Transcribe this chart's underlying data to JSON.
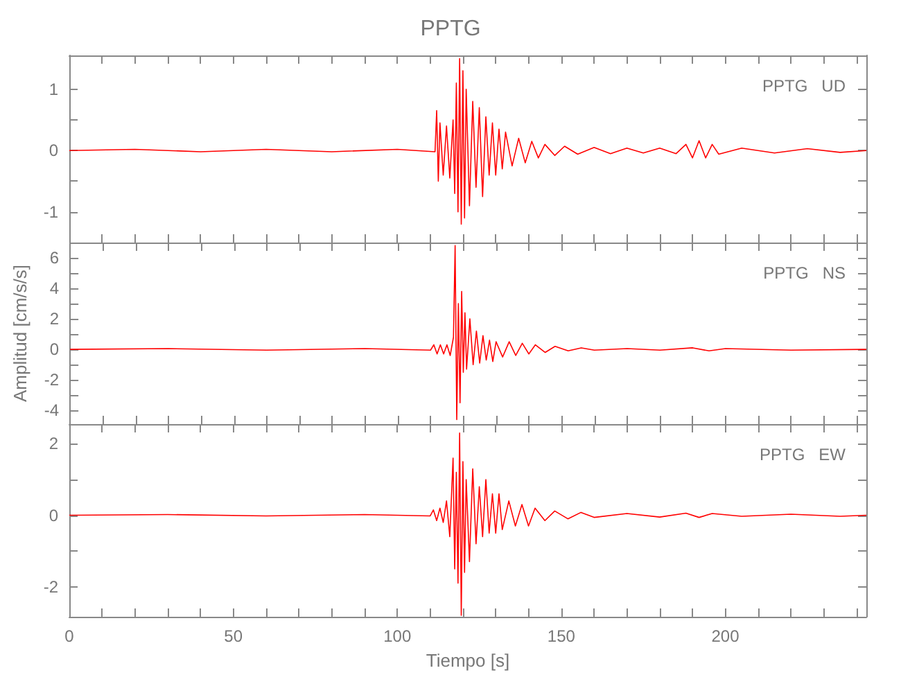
{
  "chart_data": [
    {
      "type": "line",
      "title": "PPTG",
      "annotations": [
        "PPTG   UD"
      ],
      "tick_labels": "y",
      "marker": "none",
      "line_style": "solid",
      "xlim": [
        0,
        243
      ],
      "xticks": [
        0,
        {
          "value": 10,
          "label": null
        },
        {
          "value": 20,
          "label": null
        },
        {
          "value": 30,
          "label": null
        },
        {
          "value": 40,
          "label": null
        },
        50,
        {
          "value": 60,
          "label": null
        },
        {
          "value": 70,
          "label": null
        },
        {
          "value": 80,
          "label": null
        },
        {
          "value": 90,
          "label": null
        },
        100,
        {
          "value": 110,
          "label": null
        },
        {
          "value": 120,
          "label": null
        },
        {
          "value": 130,
          "label": null
        },
        {
          "value": 140,
          "label": null
        },
        150,
        {
          "value": 160,
          "label": null
        },
        {
          "value": 170,
          "label": null
        },
        {
          "value": 180,
          "label": null
        },
        {
          "value": 190,
          "label": null
        },
        200,
        {
          "value": 210,
          "label": null
        },
        {
          "value": 220,
          "label": null
        },
        {
          "value": 230,
          "label": null
        },
        {
          "value": 240,
          "label": null
        }
      ],
      "ylim": [
        -1.5,
        1.55
      ],
      "yticks": [
        -1,
        {
          "value": -0.5,
          "label": null
        },
        0,
        {
          "value": 0.5,
          "label": null
        },
        1
      ],
      "series": [
        {
          "color": "#ff0000",
          "x": [
            0,
            20,
            40,
            60,
            80,
            100,
            111.5,
            112,
            112.5,
            113,
            114,
            115,
            116,
            117,
            117.5,
            118,
            118.5,
            119,
            119.5,
            120,
            120.5,
            121,
            122,
            123,
            124,
            125,
            126,
            127,
            128,
            129,
            130,
            131,
            132,
            133,
            135,
            137,
            139,
            141,
            143,
            145,
            148,
            151,
            155,
            160,
            165,
            170,
            175,
            180,
            185,
            188,
            190,
            192,
            194,
            196,
            198,
            205,
            215,
            225,
            235,
            243
          ],
          "values": [
            0,
            0.02,
            -0.02,
            0.02,
            -0.02,
            0.02,
            -0.02,
            0.65,
            -0.5,
            0.45,
            -0.4,
            0.4,
            -0.45,
            0.5,
            -0.7,
            1.1,
            -1.0,
            1.5,
            -1.2,
            1.3,
            -1.1,
            1.0,
            -0.9,
            0.8,
            -0.6,
            0.7,
            -0.75,
            0.55,
            -0.4,
            0.45,
            -0.4,
            0.35,
            -0.3,
            0.3,
            -0.25,
            0.2,
            -0.2,
            0.15,
            -0.12,
            0.1,
            -0.08,
            0.07,
            -0.06,
            0.05,
            -0.05,
            0.04,
            -0.04,
            0.04,
            -0.05,
            0.1,
            -0.12,
            0.16,
            -0.12,
            0.1,
            -0.06,
            0.04,
            -0.04,
            0.03,
            -0.03,
            0
          ]
        }
      ]
    },
    {
      "type": "line",
      "ylabel": "Amplitud [cm/s/s]",
      "annotations": [
        "PPTG   NS"
      ],
      "tick_labels": "y",
      "marker": "none",
      "line_style": "solid",
      "xlim": [
        0,
        243
      ],
      "xticks": [
        0,
        {
          "value": 10,
          "label": null
        },
        {
          "value": 20,
          "label": null
        },
        {
          "value": 30,
          "label": null
        },
        {
          "value": 40,
          "label": null
        },
        50,
        {
          "value": 60,
          "label": null
        },
        {
          "value": 70,
          "label": null
        },
        {
          "value": 80,
          "label": null
        },
        {
          "value": 90,
          "label": null
        },
        100,
        {
          "value": 110,
          "label": null
        },
        {
          "value": 120,
          "label": null
        },
        {
          "value": 130,
          "label": null
        },
        {
          "value": 140,
          "label": null
        },
        150,
        {
          "value": 160,
          "label": null
        },
        {
          "value": 170,
          "label": null
        },
        {
          "value": 180,
          "label": null
        },
        {
          "value": 190,
          "label": null
        },
        200,
        {
          "value": 210,
          "label": null
        },
        {
          "value": 220,
          "label": null
        },
        {
          "value": 230,
          "label": null
        },
        {
          "value": 240,
          "label": null
        }
      ],
      "ylim": [
        -4.9,
        7
      ],
      "yticks": [
        -4,
        {
          "value": -3,
          "label": null
        },
        -2,
        {
          "value": -1,
          "label": null
        },
        0,
        {
          "value": 1,
          "label": null
        },
        2,
        {
          "value": 3,
          "label": null
        },
        4,
        {
          "value": 5,
          "label": null
        },
        6
      ],
      "series": [
        {
          "color": "#ff0000",
          "x": [
            0,
            30,
            60,
            90,
            110,
            111,
            112,
            113,
            114,
            115,
            116,
            117,
            117.5,
            118,
            118.5,
            119,
            119.5,
            120,
            120.5,
            121,
            122,
            123,
            124,
            125,
            126,
            127,
            128,
            129,
            130,
            132,
            134,
            136,
            138,
            140,
            142,
            145,
            148,
            152,
            156,
            160,
            170,
            180,
            190,
            195,
            200,
            220,
            243
          ],
          "values": [
            0,
            0.05,
            -0.05,
            0.05,
            -0.05,
            0.3,
            -0.3,
            0.3,
            -0.3,
            0.3,
            -0.4,
            0.8,
            6.8,
            -4.6,
            3.0,
            -3.5,
            3.8,
            -1.5,
            2.4,
            -1.3,
            2.0,
            -1.0,
            1.2,
            -0.9,
            0.9,
            -0.7,
            0.6,
            -0.8,
            0.5,
            -0.5,
            0.5,
            -0.4,
            0.4,
            -0.3,
            0.3,
            -0.2,
            0.2,
            -0.1,
            0.1,
            -0.05,
            0.05,
            -0.05,
            0.1,
            -0.1,
            0.05,
            -0.05,
            0
          ]
        }
      ]
    },
    {
      "type": "line",
      "xlabel": "Tiempo [s]",
      "annotations": [
        "PPTG   EW"
      ],
      "marker": "none",
      "line_style": "solid",
      "xlim": [
        0,
        243
      ],
      "xticks": [
        0,
        {
          "value": 10,
          "label": null
        },
        {
          "value": 20,
          "label": null
        },
        {
          "value": 30,
          "label": null
        },
        {
          "value": 40,
          "label": null
        },
        50,
        {
          "value": 60,
          "label": null
        },
        {
          "value": 70,
          "label": null
        },
        {
          "value": 80,
          "label": null
        },
        {
          "value": 90,
          "label": null
        },
        100,
        {
          "value": 110,
          "label": null
        },
        {
          "value": 120,
          "label": null
        },
        {
          "value": 130,
          "label": null
        },
        {
          "value": 140,
          "label": null
        },
        150,
        {
          "value": 160,
          "label": null
        },
        {
          "value": 170,
          "label": null
        },
        {
          "value": 180,
          "label": null
        },
        {
          "value": 190,
          "label": null
        },
        200,
        {
          "value": 210,
          "label": null
        },
        {
          "value": 220,
          "label": null
        },
        {
          "value": 230,
          "label": null
        },
        {
          "value": 240,
          "label": null
        }
      ],
      "ylim": [
        -2.84,
        2.55
      ],
      "yticks": [
        -2,
        {
          "value": -1,
          "label": null
        },
        0,
        {
          "value": 1,
          "label": null
        },
        2
      ],
      "series": [
        {
          "color": "#ff0000",
          "x": [
            0,
            30,
            60,
            90,
            110,
            111,
            112,
            113,
            114,
            115,
            116,
            117,
            117.5,
            118,
            118.5,
            119,
            119.5,
            120,
            120.5,
            121,
            122,
            123,
            124,
            125,
            126,
            127,
            128,
            129,
            130,
            131,
            132,
            134,
            136,
            138,
            140,
            142,
            145,
            148,
            152,
            156,
            160,
            170,
            180,
            188,
            192,
            196,
            205,
            220,
            235,
            243
          ],
          "values": [
            0,
            0.02,
            -0.02,
            0.02,
            -0.02,
            0.15,
            -0.15,
            0.2,
            -0.2,
            0.4,
            -0.6,
            1.6,
            -1.5,
            1.2,
            -1.9,
            2.3,
            -2.8,
            1.5,
            -1.6,
            1.0,
            -1.3,
            1.3,
            -0.8,
            0.8,
            -0.6,
            1.0,
            -0.5,
            0.6,
            -0.5,
            0.6,
            -0.4,
            0.4,
            -0.3,
            0.3,
            -0.3,
            0.2,
            -0.15,
            0.12,
            -0.1,
            0.08,
            -0.06,
            0.05,
            -0.05,
            0.06,
            -0.06,
            0.05,
            -0.03,
            0.03,
            -0.03,
            0
          ]
        }
      ]
    }
  ]
}
